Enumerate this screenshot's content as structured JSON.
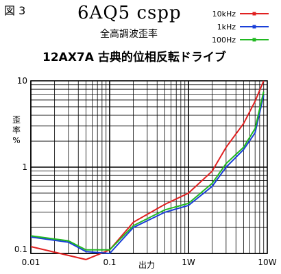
{
  "figure_label": "図 3",
  "chart_data": {
    "type": "line",
    "title": "6AQ5 cspp",
    "subtitle": "全高調波歪率",
    "subtitle2": "12AX7A 古典的位相反転ドライブ",
    "xlabel": "出力",
    "ylabel": "歪率 %",
    "xscale": "log",
    "yscale": "log",
    "xlim": [
      0.01,
      10
    ],
    "ylim": [
      0.1,
      10
    ],
    "grid": true,
    "legend_position": "top-right",
    "x_tick_labels": [
      {
        "value": 0.01,
        "label": "0.01"
      },
      {
        "value": 0.1,
        "label": "0.1"
      },
      {
        "value": 1,
        "label": "1W"
      },
      {
        "value": 10,
        "label": "10W"
      }
    ],
    "y_tick_labels": [
      {
        "value": 0.1,
        "label": "0.1"
      },
      {
        "value": 1,
        "label": "1"
      },
      {
        "value": 10,
        "label": "10"
      }
    ],
    "series": [
      {
        "name": "10kHz",
        "color": "#e02020",
        "points": [
          [
            0.01,
            0.12
          ],
          [
            0.05,
            0.085
          ],
          [
            0.1,
            0.11
          ],
          [
            0.2,
            0.23
          ],
          [
            0.5,
            0.37
          ],
          [
            1,
            0.5
          ],
          [
            2,
            0.9
          ],
          [
            3,
            1.7
          ],
          [
            5,
            3.2
          ],
          [
            7,
            5.8
          ],
          [
            9,
            10
          ]
        ]
      },
      {
        "name": "1kHz",
        "color": "#1a3fd8",
        "points": [
          [
            0.01,
            0.155
          ],
          [
            0.03,
            0.135
          ],
          [
            0.05,
            0.105
          ],
          [
            0.1,
            0.1
          ],
          [
            0.2,
            0.2
          ],
          [
            0.5,
            0.3
          ],
          [
            1,
            0.36
          ],
          [
            2,
            0.6
          ],
          [
            3,
            1.0
          ],
          [
            5,
            1.6
          ],
          [
            7,
            2.5
          ],
          [
            9,
            6.8
          ]
        ]
      },
      {
        "name": "100Hz",
        "color": "#20b820",
        "points": [
          [
            0.01,
            0.16
          ],
          [
            0.03,
            0.14
          ],
          [
            0.05,
            0.11
          ],
          [
            0.1,
            0.11
          ],
          [
            0.2,
            0.21
          ],
          [
            0.5,
            0.32
          ],
          [
            1,
            0.38
          ],
          [
            2,
            0.65
          ],
          [
            3,
            1.1
          ],
          [
            5,
            1.7
          ],
          [
            7,
            2.8
          ],
          [
            9,
            7.5
          ]
        ]
      }
    ]
  }
}
